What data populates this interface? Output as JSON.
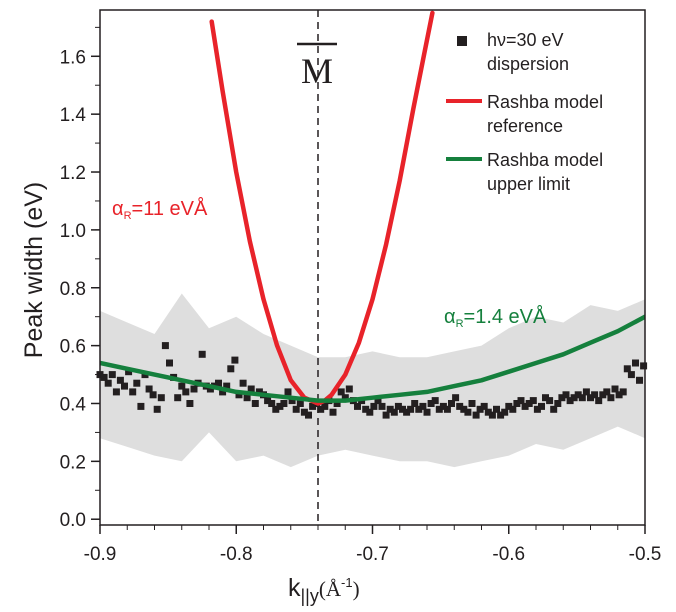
{
  "chart_data": {
    "type": "scatter",
    "xlabel": "k",
    "xlabel_sub": "||y",
    "xlabel_unit": "(Å",
    "xlabel_unit_sup": "-1",
    "xlabel_unit_close": ")",
    "ylabel": "Peak width (eV)",
    "xlim": [
      -0.9,
      -0.5
    ],
    "ylim": [
      -0.02,
      1.76
    ],
    "x_ticks": [
      {
        "value": -0.9,
        "label": "-0.9"
      },
      {
        "value": -0.8,
        "label": "-0.8"
      },
      {
        "value": -0.7,
        "label": "-0.7"
      },
      {
        "value": -0.6,
        "label": "-0.6"
      },
      {
        "value": -0.5,
        "label": "-0.5"
      }
    ],
    "y_ticks": [
      {
        "value": 0.0,
        "label": "0.0"
      },
      {
        "value": 0.2,
        "label": "0.2"
      },
      {
        "value": 0.4,
        "label": "0.4"
      },
      {
        "value": 0.6,
        "label": "0.6"
      },
      {
        "value": 0.8,
        "label": "0.8"
      },
      {
        "value": 1.0,
        "label": "1.0"
      },
      {
        "value": 1.2,
        "label": "1.2"
      },
      {
        "value": 1.4,
        "label": "1.4"
      },
      {
        "value": 1.6,
        "label": "1.6"
      }
    ],
    "vline": {
      "x": -0.74,
      "label": "M"
    },
    "legend": {
      "position": "top-right",
      "entries": [
        {
          "line1": "hν=30 eV",
          "line2": "dispersion",
          "color": "#231f20",
          "marker": "square"
        },
        {
          "line1": "Rashba model",
          "line2": "reference",
          "color": "#e8232a",
          "marker": "line"
        },
        {
          "line1": "Rashba model",
          "line2": "upper limit",
          "color": "#15803d",
          "marker": "line"
        }
      ]
    },
    "annotations": [
      {
        "prefix": "α",
        "sub": "R",
        "rest": "=11 eVÅ",
        "color": "#e8232a"
      },
      {
        "prefix": "α",
        "sub": "R",
        "rest": "=1.4 eVÅ",
        "color": "#15803d"
      }
    ],
    "series": [
      {
        "name": "hν=30 eV dispersion",
        "kind": "scatter",
        "color": "#231f20",
        "x": [
          -0.9,
          -0.897,
          -0.894,
          -0.891,
          -0.888,
          -0.885,
          -0.882,
          -0.879,
          -0.876,
          -0.873,
          -0.87,
          -0.867,
          -0.864,
          -0.861,
          -0.858,
          -0.855,
          -0.852,
          -0.849,
          -0.846,
          -0.843,
          -0.84,
          -0.837,
          -0.834,
          -0.831,
          -0.828,
          -0.825,
          -0.822,
          -0.819,
          -0.816,
          -0.813,
          -0.81,
          -0.807,
          -0.804,
          -0.801,
          -0.798,
          -0.795,
          -0.792,
          -0.789,
          -0.786,
          -0.783,
          -0.78,
          -0.777,
          -0.774,
          -0.771,
          -0.768,
          -0.765,
          -0.762,
          -0.759,
          -0.756,
          -0.753,
          -0.75,
          -0.747,
          -0.744,
          -0.741,
          -0.738,
          -0.735,
          -0.732,
          -0.729,
          -0.726,
          -0.723,
          -0.72,
          -0.717,
          -0.714,
          -0.711,
          -0.708,
          -0.705,
          -0.702,
          -0.699,
          -0.696,
          -0.693,
          -0.69,
          -0.687,
          -0.684,
          -0.681,
          -0.678,
          -0.675,
          -0.672,
          -0.669,
          -0.666,
          -0.663,
          -0.66,
          -0.657,
          -0.654,
          -0.651,
          -0.648,
          -0.645,
          -0.642,
          -0.639,
          -0.636,
          -0.633,
          -0.63,
          -0.627,
          -0.624,
          -0.621,
          -0.618,
          -0.615,
          -0.612,
          -0.609,
          -0.606,
          -0.603,
          -0.6,
          -0.597,
          -0.594,
          -0.591,
          -0.588,
          -0.585,
          -0.582,
          -0.579,
          -0.576,
          -0.573,
          -0.57,
          -0.567,
          -0.564,
          -0.561,
          -0.558,
          -0.555,
          -0.552,
          -0.549,
          -0.546,
          -0.543,
          -0.54,
          -0.537,
          -0.534,
          -0.531,
          -0.528,
          -0.525,
          -0.522,
          -0.519,
          -0.516,
          -0.513,
          -0.51,
          -0.507,
          -0.504,
          -0.501
        ],
        "y": [
          0.5,
          0.49,
          0.47,
          0.5,
          0.44,
          0.48,
          0.46,
          0.51,
          0.44,
          0.47,
          0.39,
          0.5,
          0.45,
          0.43,
          0.38,
          0.42,
          0.6,
          0.54,
          0.49,
          0.42,
          0.46,
          0.44,
          0.4,
          0.45,
          0.47,
          0.57,
          0.46,
          0.45,
          0.46,
          0.47,
          0.44,
          0.46,
          0.52,
          0.55,
          0.43,
          0.47,
          0.42,
          0.45,
          0.4,
          0.44,
          0.43,
          0.41,
          0.4,
          0.38,
          0.39,
          0.4,
          0.44,
          0.41,
          0.38,
          0.4,
          0.37,
          0.36,
          0.39,
          0.4,
          0.38,
          0.39,
          0.41,
          0.37,
          0.4,
          0.44,
          0.42,
          0.45,
          0.41,
          0.39,
          0.41,
          0.38,
          0.37,
          0.39,
          0.41,
          0.39,
          0.36,
          0.38,
          0.37,
          0.39,
          0.38,
          0.37,
          0.38,
          0.4,
          0.38,
          0.39,
          0.37,
          0.4,
          0.41,
          0.38,
          0.39,
          0.38,
          0.4,
          0.42,
          0.39,
          0.38,
          0.37,
          0.4,
          0.36,
          0.38,
          0.39,
          0.37,
          0.36,
          0.38,
          0.36,
          0.37,
          0.39,
          0.38,
          0.4,
          0.41,
          0.39,
          0.4,
          0.41,
          0.38,
          0.39,
          0.42,
          0.41,
          0.38,
          0.4,
          0.42,
          0.43,
          0.41,
          0.42,
          0.43,
          0.42,
          0.44,
          0.42,
          0.43,
          0.41,
          0.43,
          0.44,
          0.42,
          0.45,
          0.43,
          0.44,
          0.52,
          0.5,
          0.54,
          0.48,
          0.53
        ]
      },
      {
        "name": "Rashba model reference",
        "kind": "line",
        "color": "#e8232a",
        "x": [
          -0.818,
          -0.81,
          -0.8,
          -0.79,
          -0.78,
          -0.77,
          -0.76,
          -0.75,
          -0.745,
          -0.74,
          -0.735,
          -0.73,
          -0.72,
          -0.71,
          -0.7,
          -0.69,
          -0.68,
          -0.67,
          -0.662,
          -0.656
        ],
        "y": [
          1.72,
          1.48,
          1.2,
          0.96,
          0.76,
          0.6,
          0.48,
          0.42,
          0.41,
          0.4,
          0.41,
          0.43,
          0.5,
          0.61,
          0.76,
          0.95,
          1.17,
          1.42,
          1.61,
          1.75
        ]
      },
      {
        "name": "Rashba model upper limit",
        "kind": "line",
        "color": "#15803d",
        "x": [
          -0.9,
          -0.88,
          -0.86,
          -0.84,
          -0.82,
          -0.8,
          -0.78,
          -0.76,
          -0.74,
          -0.72,
          -0.7,
          -0.68,
          -0.66,
          -0.64,
          -0.62,
          -0.6,
          -0.58,
          -0.56,
          -0.54,
          -0.52,
          -0.5
        ],
        "y": [
          0.54,
          0.52,
          0.5,
          0.48,
          0.46,
          0.44,
          0.43,
          0.42,
          0.41,
          0.41,
          0.42,
          0.43,
          0.44,
          0.46,
          0.48,
          0.51,
          0.54,
          0.57,
          0.61,
          0.65,
          0.7
        ]
      },
      {
        "name": "uncertainty band",
        "kind": "band",
        "color": "#dedede",
        "x": [
          -0.9,
          -0.88,
          -0.86,
          -0.84,
          -0.82,
          -0.8,
          -0.78,
          -0.76,
          -0.74,
          -0.72,
          -0.7,
          -0.68,
          -0.66,
          -0.64,
          -0.62,
          -0.6,
          -0.58,
          -0.56,
          -0.54,
          -0.52,
          -0.5
        ],
        "upper": [
          0.72,
          0.68,
          0.64,
          0.78,
          0.66,
          0.7,
          0.64,
          0.6,
          0.56,
          0.56,
          0.58,
          0.56,
          0.56,
          0.58,
          0.6,
          0.66,
          0.7,
          0.68,
          0.74,
          0.72,
          0.76
        ],
        "lower": [
          0.28,
          0.25,
          0.22,
          0.2,
          0.3,
          0.2,
          0.22,
          0.18,
          0.22,
          0.24,
          0.22,
          0.2,
          0.2,
          0.18,
          0.2,
          0.22,
          0.26,
          0.24,
          0.28,
          0.32,
          0.28
        ]
      }
    ]
  }
}
